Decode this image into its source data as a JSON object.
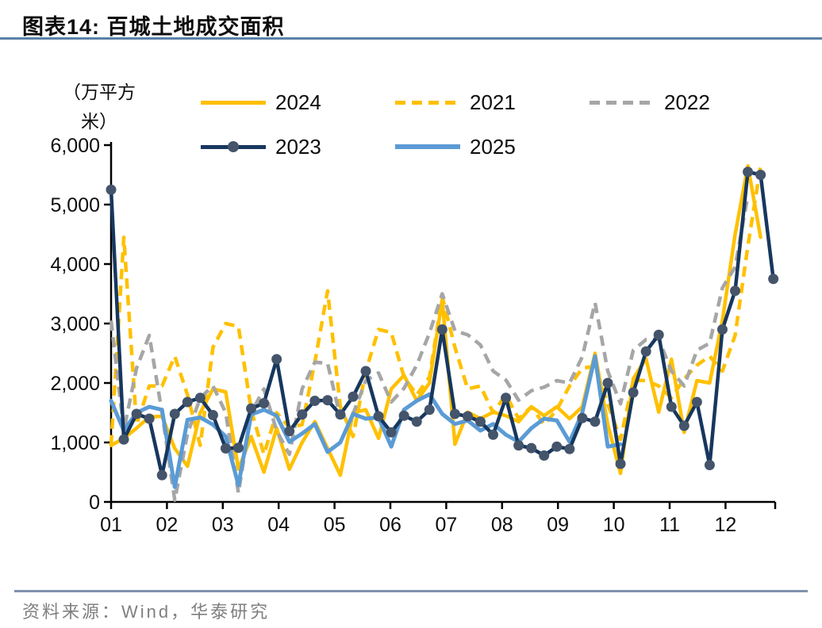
{
  "header": {
    "title": "图表14:  百城土地成交面积"
  },
  "chart_data": {
    "type": "line",
    "title": "百城土地成交面积",
    "ylabel_lines": [
      "（万平方",
      "米）"
    ],
    "x_axis": {
      "labels": [
        "01",
        "02",
        "03",
        "04",
        "05",
        "06",
        "07",
        "08",
        "09",
        "10",
        "11",
        "12"
      ]
    },
    "y_axis": {
      "min": 0,
      "max": 6000,
      "tick_step": 1000,
      "tick_labels": [
        "0",
        "1,000",
        "2,000",
        "3,000",
        "4,000",
        "5,000",
        "6,000"
      ]
    },
    "x_start": 1.0,
    "x_step": 0.228,
    "grid": "off",
    "legend_position": "top",
    "series": [
      {
        "name": "2024",
        "color": "#FFC000",
        "style": "solid",
        "markers": false,
        "values": [
          950,
          1070,
          1240,
          1430,
          1440,
          900,
          600,
          1500,
          1900,
          1850,
          550,
          1100,
          500,
          1240,
          550,
          1000,
          1350,
          900,
          450,
          1500,
          1550,
          1070,
          1900,
          2130,
          1700,
          2000,
          3400,
          970,
          1510,
          1400,
          1510,
          1450,
          1350,
          1600,
          1450,
          1600,
          1400,
          1600,
          2500,
          1300,
          480,
          2070,
          2410,
          1510,
          2400,
          1170,
          2040,
          2000,
          3050,
          4500,
          5650,
          4450
        ]
      },
      {
        "name": "2021",
        "color": "#FFC000",
        "style": "dashed",
        "markers": false,
        "values": [
          950,
          4450,
          1300,
          1950,
          1950,
          2450,
          1800,
          950,
          2600,
          3000,
          2950,
          1550,
          800,
          1500,
          1250,
          1300,
          2350,
          3550,
          1600,
          1100,
          2200,
          2900,
          2850,
          2100,
          1800,
          2100,
          3450,
          2600,
          1900,
          1950,
          1500,
          1800,
          1400,
          1600,
          1300,
          1550,
          1950,
          2250,
          2280,
          1650,
          1050,
          2050,
          2040,
          1950,
          1750,
          2070,
          2300,
          2450,
          2200,
          2800,
          4300,
          5650
        ]
      },
      {
        "name": "2022",
        "color": "#A6A6A6",
        "style": "dashed",
        "markers": false,
        "values": [
          3050,
          1200,
          2250,
          2800,
          1500,
          30,
          1150,
          1750,
          1950,
          1500,
          150,
          1500,
          1900,
          1200,
          800,
          1900,
          2350,
          2330,
          1420,
          1480,
          2040,
          2170,
          1680,
          1910,
          2300,
          2840,
          3500,
          2880,
          2810,
          2640,
          2200,
          2050,
          1710,
          1870,
          1930,
          2040,
          2000,
          2440,
          3350,
          2200,
          1650,
          2550,
          2730,
          2740,
          2200,
          1950,
          2550,
          2670,
          3600,
          3950,
          5150
        ]
      },
      {
        "name": "2023",
        "color": "#17375E",
        "style": "solid",
        "markers": true,
        "marker_color": "#44546A",
        "values": [
          5250,
          1050,
          1480,
          1400,
          450,
          1480,
          1680,
          1750,
          1460,
          900,
          910,
          1570,
          1660,
          2400,
          1190,
          1470,
          1700,
          1710,
          1470,
          1770,
          2200,
          1440,
          1170,
          1450,
          1350,
          1550,
          2900,
          1480,
          1440,
          1350,
          1130,
          1750,
          950,
          905,
          780,
          930,
          890,
          1410,
          1350,
          2000,
          640,
          1840,
          2530,
          2810,
          1600,
          1280,
          1680,
          620,
          2900,
          3550,
          5550,
          5500,
          3750
        ]
      },
      {
        "name": "2025",
        "color": "#5B9BD5",
        "style": "solid",
        "markers": false,
        "values": [
          1700,
          1200,
          1500,
          1600,
          1550,
          250,
          1380,
          1420,
          1300,
          1100,
          280,
          1470,
          1550,
          1450,
          1010,
          1150,
          1310,
          840,
          1000,
          1480,
          1400,
          1420,
          930,
          1550,
          1700,
          1810,
          1480,
          1310,
          1370,
          1200,
          1310,
          1130,
          1010,
          1240,
          1400,
          1370,
          1010,
          1500,
          2450,
          930,
          970
        ]
      }
    ],
    "legend_rows": [
      [
        0,
        1,
        2
      ],
      [
        3,
        4
      ]
    ]
  },
  "footer": {
    "source_label": "资料来源：Wind，华泰研究"
  },
  "colors": {
    "gold": "#FFC000",
    "gray": "#A6A6A6",
    "navy": "#17375E",
    "blue": "#5B9BD5",
    "marker": "#44546A",
    "title_rule": "#5b80a8",
    "footer_rule": "#8091ac",
    "source_text": "#7f7f7f"
  }
}
